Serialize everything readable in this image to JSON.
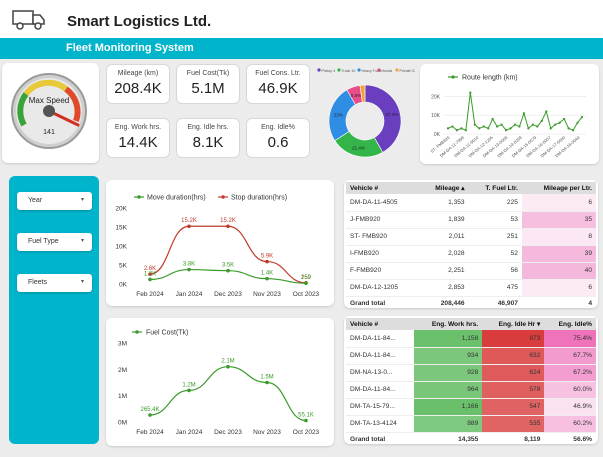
{
  "app": {
    "company": "Smart Logistics Ltd.",
    "banner": "Fleet Monitoring System"
  },
  "gauge": {
    "label": "Max Speed",
    "value": "141"
  },
  "kpis": [
    {
      "label": "Mileage (km)",
      "value": "208.4K"
    },
    {
      "label": "Fuel Cost(Tk)",
      "value": "5.1M"
    },
    {
      "label": "Fuel Cons. Ltr.",
      "value": "46.9K"
    },
    {
      "label": "Eng. Work hrs.",
      "value": "14.4K"
    },
    {
      "label": "Eng. Idle hrs.",
      "value": "8.1K"
    },
    {
      "label": "Eng. Idle%",
      "value": "0.6"
    }
  ],
  "filters": {
    "year": "Year",
    "fuel_type": "Fuel Type",
    "fleets": "Fleets"
  },
  "donut": {
    "legend": [
      "Pickup 4",
      "Truck 10",
      "Heavy Truck",
      "Honda",
      "Private Car"
    ],
    "colors": [
      "#6a3fbf",
      "#33b54a",
      "#2f8de4",
      "#e84d8a",
      "#f5a23a"
    ],
    "values": [
      37.3,
      21.4,
      23.0,
      5.5,
      2.0
    ],
    "labels": [
      "37.3%",
      "21.4%",
      "23%",
      "5.5%",
      ""
    ]
  },
  "route_chart": {
    "legend": "Route length (km)",
    "yticks": [
      "20K",
      "10K",
      "0K"
    ],
    "xticks": [
      "ST- FMB920",
      "DM-DA-11-7999",
      "DM-DA-11-9010",
      "DM-DA-12-1205",
      "DM-DA-13-0008",
      "DM-DA-14-0209",
      "DM-DA-15-0079",
      "DM-DA-16-6007",
      "DM-DA-17-6000",
      "DM-DA-18-0040"
    ],
    "values": [
      3,
      4,
      2,
      3,
      2,
      22,
      5,
      3,
      4,
      3,
      8,
      4,
      5,
      2,
      3,
      5,
      4,
      11,
      3,
      5,
      4,
      7,
      12,
      3,
      5,
      6,
      8,
      3,
      2,
      6,
      9
    ]
  },
  "duration_chart": {
    "legend": [
      "Move duration(hrs)",
      "Stop duration(hrs)"
    ],
    "colors": [
      "#3a9a2a",
      "#c0392b"
    ],
    "yticks": [
      "20K",
      "15K",
      "10K",
      "5K",
      "0K"
    ],
    "xticks": [
      "Feb 2024",
      "Jan 2024",
      "Dec 2023",
      "Nov 2023",
      "Oct 2023"
    ],
    "move": [
      1.2,
      3.8,
      3.5,
      1.4,
      0.2
    ],
    "stop": [
      2.6,
      15.2,
      15.2,
      5.9,
      0.3
    ],
    "move_labels": [
      "1.2K",
      "3.8K",
      "3.5K",
      "1.4K",
      "159"
    ],
    "stop_labels": [
      "2.6K",
      "15.2K",
      "15.2K",
      "5.9K",
      "259"
    ]
  },
  "fuel_chart": {
    "legend": "Fuel Cost(Tk)",
    "yticks": [
      "3M",
      "2M",
      "1M",
      "0M"
    ],
    "xticks": [
      "Feb 2024",
      "Jan 2024",
      "Dec 2023",
      "Nov 2023",
      "Oct 2023"
    ],
    "values": [
      0.2654,
      1.2,
      2.1,
      1.5,
      0.0551
    ],
    "labels": [
      "265.4K",
      "1.2M",
      "2.1M",
      "1.5M",
      "55.1K"
    ]
  },
  "table1": {
    "headers": [
      "Vehicle #",
      "Mileage",
      "T. Fuel Ltr.",
      "Mileage per Ltr."
    ],
    "rows": [
      {
        "vehicle": "DM-DA-11-4505",
        "mileage": "1,353",
        "fuel": "225",
        "mpl": "6",
        "mpl_n": 6
      },
      {
        "vehicle": "J-FMB920",
        "mileage": "1,839",
        "fuel": "53",
        "mpl": "35",
        "mpl_n": 35
      },
      {
        "vehicle": "ST- FMB920",
        "mileage": "2,011",
        "fuel": "251",
        "mpl": "8",
        "mpl_n": 8
      },
      {
        "vehicle": "I-FMB920",
        "mileage": "2,028",
        "fuel": "52",
        "mpl": "39",
        "mpl_n": 39
      },
      {
        "vehicle": "F-FMB920",
        "mileage": "2,251",
        "fuel": "56",
        "mpl": "40",
        "mpl_n": 40
      },
      {
        "vehicle": "DM-DA-12-1205",
        "mileage": "2,853",
        "fuel": "475",
        "mpl": "6",
        "mpl_n": 6
      }
    ],
    "total": {
      "label": "Grand total",
      "mileage": "208,446",
      "fuel": "46,907",
      "mpl": "4"
    }
  },
  "table2": {
    "headers": [
      "Vehicle #",
      "Eng. Work hrs.",
      "Eng. Idle Hr",
      "Eng. Idle%"
    ],
    "rows": [
      {
        "vehicle": "DM-DA-11-84...",
        "work": "1,158",
        "idle": "873",
        "pct": "75.4%",
        "w": 0.99,
        "i": 1.0,
        "p": 1.0
      },
      {
        "vehicle": "DM-DA-11-84...",
        "work": "934",
        "idle": "632",
        "pct": "67.7%",
        "w": 0.8,
        "i": 0.72,
        "p": 0.66
      },
      {
        "vehicle": "DM-NA-13-0...",
        "work": "928",
        "idle": "624",
        "pct": "67.2%",
        "w": 0.8,
        "i": 0.71,
        "p": 0.64
      },
      {
        "vehicle": "DM-DA-11-84...",
        "work": "964",
        "idle": "578",
        "pct": "60.0%",
        "w": 0.83,
        "i": 0.66,
        "p": 0.33
      },
      {
        "vehicle": "DM-TA-15-79...",
        "work": "1,166",
        "idle": "547",
        "pct": "46.9%",
        "w": 1.0,
        "i": 0.63,
        "p": 0.05
      },
      {
        "vehicle": "DM-TA-13-4124",
        "work": "889",
        "idle": "535",
        "pct": "60.2%",
        "w": 0.76,
        "i": 0.61,
        "p": 0.34
      }
    ],
    "total": {
      "label": "Grand total",
      "work": "14,355",
      "idle": "8,119",
      "pct": "56.6%"
    }
  }
}
